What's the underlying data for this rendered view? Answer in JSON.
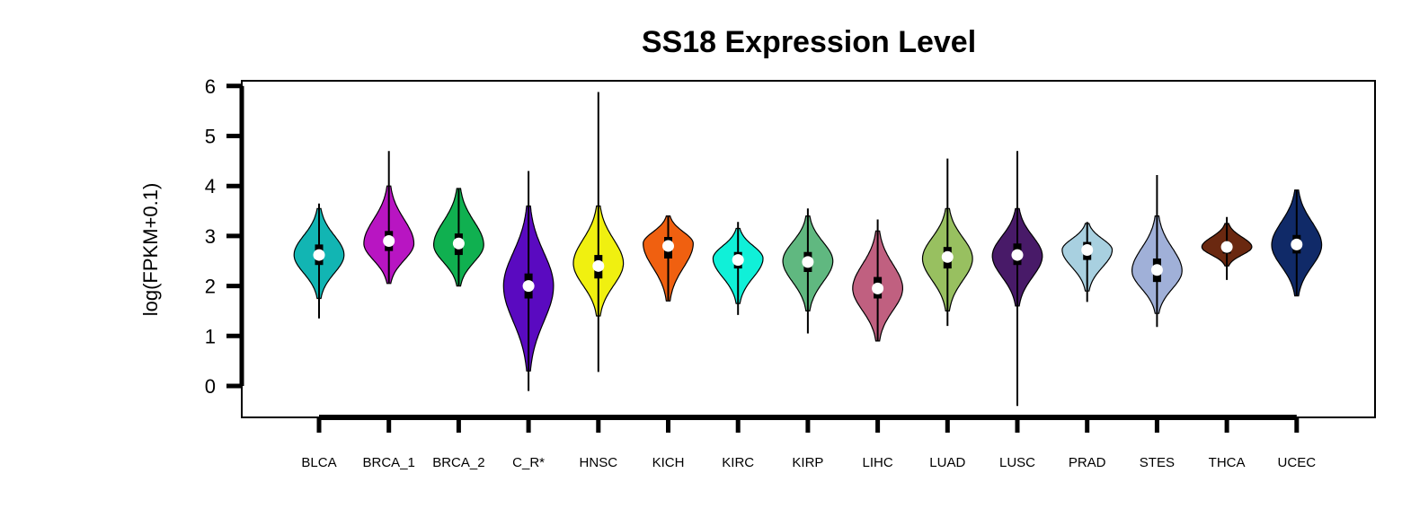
{
  "chart_data": {
    "type": "violin",
    "title": "SS18 Expression Level",
    "xlabel": "",
    "ylabel": "log(FPKM+0.1)",
    "ylim": [
      -0.6,
      6.15
    ],
    "yticks": [
      0,
      1,
      2,
      3,
      4,
      5,
      6
    ],
    "grid": false,
    "legend": "none",
    "categories": [
      "BLCA",
      "BRCA_1",
      "BRCA_2",
      "C_R*",
      "HNSC",
      "KICH",
      "KIRC",
      "KIRP",
      "LIHC",
      "LUAD",
      "LUSC",
      "PRAD",
      "STES",
      "THCA",
      "UCEC"
    ],
    "series": [
      {
        "category": "BLCA",
        "color": "#12b5b3",
        "min": 1.35,
        "q1": 2.42,
        "median": 2.62,
        "q3": 2.83,
        "max": 3.65,
        "violin_low": 1.75,
        "violin_high": 3.55,
        "mode": 2.62,
        "width": 0.8
      },
      {
        "category": "BRCA_1",
        "color": "#b815c2",
        "min": 2.05,
        "q1": 2.7,
        "median": 2.9,
        "q3": 3.1,
        "max": 4.7,
        "violin_low": 2.05,
        "violin_high": 4.0,
        "mode": 2.85,
        "width": 0.8
      },
      {
        "category": "BRCA_2",
        "color": "#10b050",
        "min": 2.0,
        "q1": 2.62,
        "median": 2.85,
        "q3": 3.05,
        "max": 3.95,
        "violin_low": 2.0,
        "violin_high": 3.95,
        "mode": 2.82,
        "width": 0.8
      },
      {
        "category": "C_R*",
        "color": "#5a0ac0",
        "min": -0.1,
        "q1": 1.75,
        "median": 2.0,
        "q3": 2.25,
        "max": 4.3,
        "violin_low": 0.3,
        "violin_high": 3.6,
        "mode": 2.0,
        "width": 0.8
      },
      {
        "category": "HNSC",
        "color": "#f0f010",
        "min": 0.28,
        "q1": 2.15,
        "median": 2.4,
        "q3": 2.62,
        "max": 5.88,
        "violin_low": 1.4,
        "violin_high": 3.6,
        "mode": 2.45,
        "width": 0.8
      },
      {
        "category": "KICH",
        "color": "#f06010",
        "min": 1.7,
        "q1": 2.55,
        "median": 2.8,
        "q3": 2.98,
        "max": 3.4,
        "violin_low": 1.7,
        "violin_high": 3.4,
        "mode": 2.85,
        "width": 0.8
      },
      {
        "category": "KIRC",
        "color": "#10f0d8",
        "min": 1.42,
        "q1": 2.35,
        "median": 2.52,
        "q3": 2.68,
        "max": 3.28,
        "violin_low": 1.65,
        "violin_high": 3.15,
        "mode": 2.55,
        "width": 0.8
      },
      {
        "category": "KIRP",
        "color": "#60b880",
        "min": 1.05,
        "q1": 2.28,
        "median": 2.48,
        "q3": 2.68,
        "max": 3.55,
        "violin_low": 1.5,
        "violin_high": 3.4,
        "mode": 2.5,
        "width": 0.8
      },
      {
        "category": "LIHC",
        "color": "#c06080",
        "min": 0.9,
        "q1": 1.75,
        "median": 1.95,
        "q3": 2.18,
        "max": 3.33,
        "violin_low": 0.9,
        "violin_high": 3.1,
        "mode": 1.95,
        "width": 0.8
      },
      {
        "category": "LUAD",
        "color": "#98c060",
        "min": 1.2,
        "q1": 2.35,
        "median": 2.58,
        "q3": 2.78,
        "max": 4.55,
        "violin_low": 1.5,
        "violin_high": 3.55,
        "mode": 2.55,
        "width": 0.8
      },
      {
        "category": "LUSC",
        "color": "#481a68",
        "min": -0.4,
        "q1": 2.42,
        "median": 2.62,
        "q3": 2.85,
        "max": 4.7,
        "violin_low": 1.6,
        "violin_high": 3.55,
        "mode": 2.6,
        "width": 0.8
      },
      {
        "category": "PRAD",
        "color": "#a8d0e0",
        "min": 1.68,
        "q1": 2.52,
        "median": 2.72,
        "q3": 2.88,
        "max": 3.28,
        "violin_low": 1.9,
        "violin_high": 3.25,
        "mode": 2.72,
        "width": 0.8
      },
      {
        "category": "STES",
        "color": "#a0b0d8",
        "min": 1.18,
        "q1": 2.08,
        "median": 2.32,
        "q3": 2.55,
        "max": 4.22,
        "violin_low": 1.45,
        "violin_high": 3.4,
        "mode": 2.3,
        "width": 0.8
      },
      {
        "category": "THCA",
        "color": "#6a2810",
        "min": 2.12,
        "q1": 2.65,
        "median": 2.78,
        "q3": 2.88,
        "max": 3.38,
        "violin_low": 2.4,
        "violin_high": 3.25,
        "mode": 2.78,
        "width": 0.8
      },
      {
        "category": "UCEC",
        "color": "#102a68",
        "min": 1.8,
        "q1": 2.65,
        "median": 2.83,
        "q3": 3.02,
        "max": 3.92,
        "violin_low": 1.8,
        "violin_high": 3.92,
        "mode": 2.82,
        "width": 0.8
      }
    ]
  }
}
